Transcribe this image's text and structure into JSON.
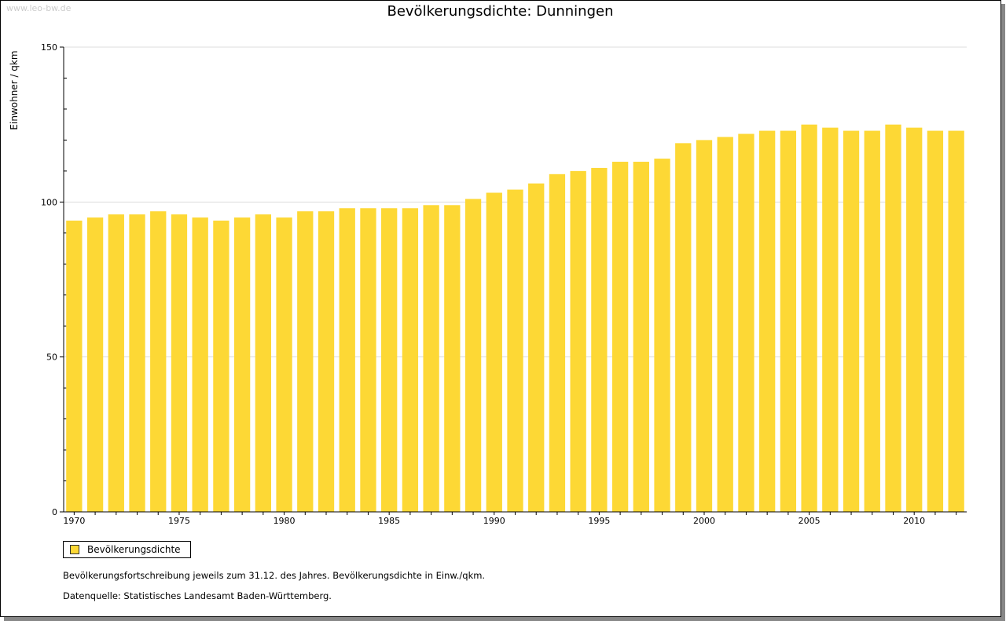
{
  "watermark": "www.leo-bw.de",
  "chart_data": {
    "type": "bar",
    "title": "Bevölkerungsdichte: Dunningen",
    "ylabel": "Einwohner / qkm",
    "xlabel": "",
    "ylim": [
      0,
      150
    ],
    "yticks": [
      "0",
      "50",
      "100",
      "150"
    ],
    "xticks": [
      "1970",
      "1975",
      "1980",
      "1985",
      "1990",
      "1995",
      "2000",
      "2005",
      "2010"
    ],
    "categories": [
      1970,
      1971,
      1972,
      1973,
      1974,
      1975,
      1976,
      1977,
      1978,
      1979,
      1980,
      1981,
      1982,
      1983,
      1984,
      1985,
      1986,
      1987,
      1988,
      1989,
      1990,
      1991,
      1992,
      1993,
      1994,
      1995,
      1996,
      1997,
      1998,
      1999,
      2000,
      2001,
      2002,
      2003,
      2004,
      2005,
      2006,
      2007,
      2008,
      2009,
      2010,
      2011,
      2012
    ],
    "series": [
      {
        "name": "Bevölkerungsdichte",
        "color": "#FDD835",
        "values": [
          94,
          95,
          96,
          96,
          97,
          96,
          95,
          94,
          95,
          96,
          95,
          97,
          97,
          98,
          98,
          98,
          98,
          99,
          99,
          101,
          103,
          104,
          106,
          109,
          110,
          111,
          113,
          113,
          114,
          119,
          120,
          121,
          122,
          123,
          123,
          125,
          124,
          123,
          123,
          125,
          124,
          123,
          123
        ]
      }
    ],
    "legend": "bottom-left",
    "grid": true
  },
  "notes": [
    "Bevölkerungsfortschreibung jeweils zum 31.12. des Jahres. Bevölkerungsdichte in Einw./qkm.",
    "Datenquelle: Statistisches Landesamt Baden-Württemberg."
  ]
}
